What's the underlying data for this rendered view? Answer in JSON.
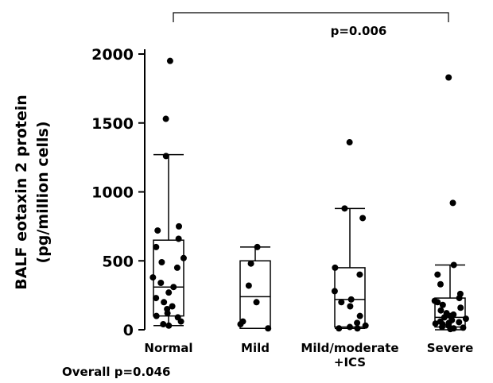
{
  "chart_data": {
    "type": "boxplot",
    "ylabel_line1": "BALF eotaxin 2 protein",
    "ylabel_line2": "(pg/million cells)",
    "ylim": [
      0,
      2000
    ],
    "yticks": [
      0,
      500,
      1000,
      1500,
      2000
    ],
    "ytick_labels": [
      "0",
      "500",
      "1000",
      "1500",
      "2000"
    ],
    "grid": false,
    "categories": [
      {
        "label_lines": [
          "Normal"
        ],
        "box": {
          "min": 30,
          "q1": 100,
          "median": 310,
          "q3": 650,
          "max": 1270
        },
        "points": [
          1950,
          1530,
          1260,
          750,
          720,
          660,
          600,
          520,
          490,
          450,
          380,
          340,
          310,
          270,
          230,
          200,
          170,
          150,
          120,
          100,
          90,
          60,
          40,
          30
        ]
      },
      {
        "label_lines": [
          "Mild"
        ],
        "box": {
          "min": 10,
          "q1": 10,
          "median": 240,
          "q3": 500,
          "max": 600
        },
        "points": [
          600,
          480,
          320,
          200,
          60,
          40,
          10
        ]
      },
      {
        "label_lines": [
          "Mild/moderate",
          "+ICS"
        ],
        "box": {
          "min": 10,
          "q1": 20,
          "median": 220,
          "q3": 450,
          "max": 880
        },
        "points": [
          1360,
          880,
          810,
          450,
          400,
          280,
          220,
          200,
          170,
          100,
          50,
          30,
          20,
          10,
          10
        ]
      },
      {
        "label_lines": [
          "Severe"
        ],
        "box": {
          "min": 0,
          "q1": 20,
          "median": 90,
          "q3": 230,
          "max": 470
        },
        "points": [
          1830,
          920,
          470,
          400,
          330,
          260,
          230,
          210,
          200,
          180,
          160,
          140,
          120,
          110,
          100,
          90,
          80,
          70,
          60,
          55,
          50,
          45,
          40,
          30,
          20,
          15,
          10,
          5
        ]
      }
    ],
    "comparison": {
      "from_category": "Normal",
      "to_category": "Severe",
      "label": "p=0.006"
    },
    "footnote": "Overall p=0.046"
  }
}
